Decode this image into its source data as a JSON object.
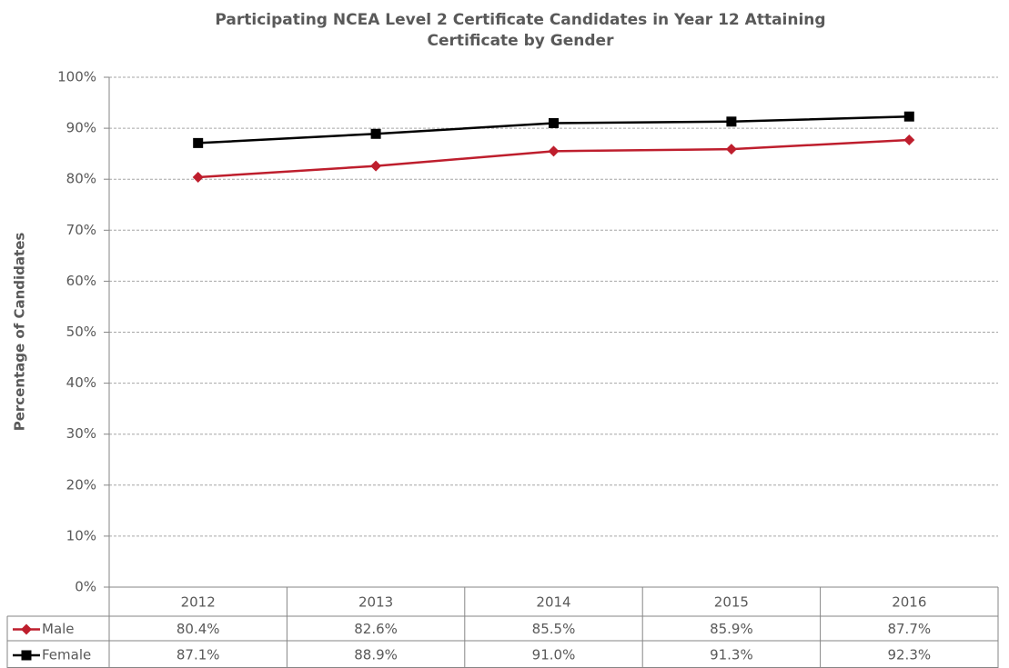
{
  "chart_data": {
    "type": "line",
    "title": [
      "Participating NCEA Level 2 Certificate Candidates in Year 12 Attaining",
      "Certificate by Gender"
    ],
    "ylabel": "Percentage of Candidates",
    "categories": [
      "2012",
      "2013",
      "2014",
      "2015",
      "2016"
    ],
    "series": [
      {
        "name": "Male",
        "color": "#be1e2d",
        "marker": "diamond",
        "values": [
          80.4,
          82.6,
          85.5,
          85.9,
          87.7
        ],
        "value_labels": [
          "80.4%",
          "82.6%",
          "85.5%",
          "85.9%",
          "87.7%"
        ]
      },
      {
        "name": "Female",
        "color": "#000000",
        "marker": "square",
        "values": [
          87.1,
          88.9,
          91.0,
          91.3,
          92.3
        ],
        "value_labels": [
          "87.1%",
          "88.9%",
          "91.0%",
          "91.3%",
          "92.3%"
        ]
      }
    ],
    "ylim": [
      0,
      100
    ],
    "yticks": [
      {
        "value": 0,
        "label": "0%"
      },
      {
        "value": 10,
        "label": "10%"
      },
      {
        "value": 20,
        "label": "20%"
      },
      {
        "value": 30,
        "label": "30%"
      },
      {
        "value": 40,
        "label": "40%"
      },
      {
        "value": 50,
        "label": "50%"
      },
      {
        "value": 60,
        "label": "60%"
      },
      {
        "value": 70,
        "label": "70%"
      },
      {
        "value": 80,
        "label": "80%"
      },
      {
        "value": 90,
        "label": "90%"
      },
      {
        "value": 100,
        "label": "100%"
      }
    ],
    "grid": true,
    "data_table": true
  }
}
